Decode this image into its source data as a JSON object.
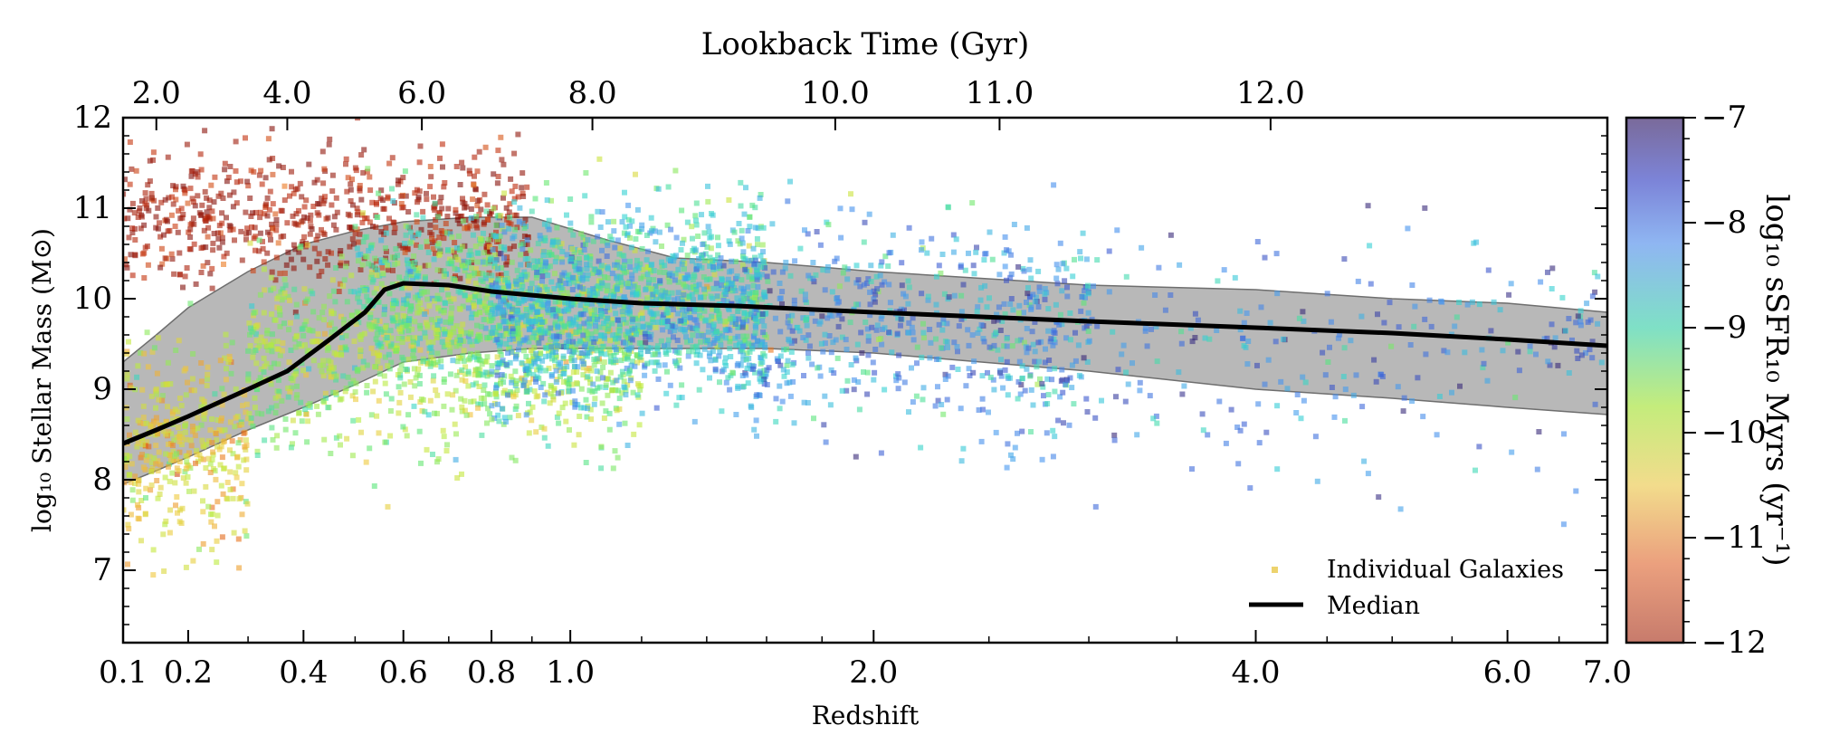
{
  "chart_data": {
    "type": "scatter",
    "top_axis": {
      "title": "Lookback Time (Gyr)",
      "tick_labels": [
        "2.0",
        "4.0",
        "6.0",
        "8.0",
        "10.0",
        "11.0",
        "12.0"
      ],
      "tick_redshifts": [
        0.15,
        0.37,
        0.64,
        1.06,
        1.85,
        2.55,
        4.1
      ]
    },
    "x_axis": {
      "title": "Redshift",
      "scale": "log(1+z)",
      "tick_labels": [
        "0.1",
        "0.2",
        "0.4",
        "0.6",
        "0.8",
        "1.0",
        "2.0",
        "4.0",
        "6.0",
        "7.0"
      ],
      "tick_values": [
        0.1,
        0.2,
        0.4,
        0.6,
        0.8,
        1.0,
        2.0,
        4.0,
        6.0,
        7.0
      ],
      "range": [
        0.1,
        7.0
      ]
    },
    "y_axis": {
      "title": "log₁₀ Stellar Mass (M⊙)",
      "tick_labels": [
        "7",
        "8",
        "9",
        "10",
        "11",
        "12"
      ],
      "tick_values": [
        7,
        8,
        9,
        10,
        11,
        12
      ],
      "range": [
        6.2,
        12.0
      ]
    },
    "colorbar": {
      "title": "log₁₀ sSFR₁₀ Myrs (yr⁻¹)",
      "tick_labels": [
        "−7",
        "−8",
        "−9",
        "−10",
        "−11",
        "−12"
      ],
      "tick_values": [
        -7,
        -8,
        -9,
        -10,
        -11,
        -12
      ],
      "range": [
        -12,
        -7
      ],
      "colormap": "turbo (reversed)"
    },
    "legend": {
      "position": "lower-right",
      "entries": [
        {
          "label": "Individual Galaxies",
          "marker": "square",
          "color": "#e8c84a"
        },
        {
          "label": "Median",
          "marker": "line",
          "color": "#000000"
        }
      ]
    },
    "median": {
      "z": [
        0.1,
        0.15,
        0.2,
        0.3,
        0.37,
        0.45,
        0.52,
        0.56,
        0.6,
        0.7,
        0.8,
        1.0,
        1.2,
        1.5,
        2.0,
        3.0,
        4.0,
        5.0,
        6.0,
        7.0
      ],
      "logM": [
        8.4,
        8.55,
        8.7,
        9.0,
        9.2,
        9.55,
        9.85,
        10.1,
        10.17,
        10.15,
        10.08,
        10.0,
        9.95,
        9.92,
        9.85,
        9.75,
        9.68,
        9.62,
        9.55,
        9.48
      ]
    },
    "band_upper": {
      "z": [
        0.1,
        0.15,
        0.2,
        0.3,
        0.4,
        0.5,
        0.6,
        0.75,
        0.9,
        1.1,
        1.3,
        1.6,
        2.0,
        3.0,
        4.0,
        5.0,
        6.0,
        7.0
      ],
      "logM": [
        9.3,
        9.6,
        9.9,
        10.3,
        10.6,
        10.75,
        10.85,
        10.9,
        10.9,
        10.65,
        10.45,
        10.4,
        10.3,
        10.15,
        10.1,
        10.0,
        9.95,
        9.85
      ]
    },
    "band_lower": {
      "z": [
        0.1,
        0.15,
        0.2,
        0.3,
        0.4,
        0.5,
        0.6,
        0.75,
        0.9,
        1.1,
        1.3,
        1.6,
        2.0,
        3.0,
        4.0,
        5.0,
        6.0,
        7.0
      ],
      "logM": [
        7.95,
        8.1,
        8.25,
        8.55,
        8.8,
        9.05,
        9.3,
        9.4,
        9.45,
        9.45,
        9.45,
        9.45,
        9.4,
        9.2,
        9.0,
        8.9,
        8.8,
        8.72
      ]
    },
    "scatter_clouds": [
      {
        "z_min": 0.1,
        "z_max": 0.3,
        "logM_mean": 8.4,
        "logM_sd": 0.55,
        "ssfr_mean": -9.9,
        "ssfr_sd": 0.35,
        "count": 380
      },
      {
        "z_min": 0.1,
        "z_max": 0.9,
        "logM_mean": 10.9,
        "logM_sd": 0.35,
        "ssfr_mean": -11.6,
        "ssfr_sd": 0.35,
        "count": 650
      },
      {
        "z_min": 0.3,
        "z_max": 1.2,
        "logM_mean": 9.4,
        "logM_sd": 0.5,
        "ssfr_mean": -9.4,
        "ssfr_sd": 0.35,
        "count": 1100
      },
      {
        "z_min": 0.5,
        "z_max": 1.6,
        "logM_mean": 10.1,
        "logM_sd": 0.45,
        "ssfr_mean": -9.0,
        "ssfr_sd": 0.4,
        "count": 950
      },
      {
        "z_min": 0.8,
        "z_max": 1.6,
        "logM_mean": 9.8,
        "logM_sd": 0.5,
        "ssfr_mean": -8.4,
        "ssfr_sd": 0.35,
        "count": 900
      },
      {
        "z_min": 1.5,
        "z_max": 3.0,
        "logM_mean": 9.75,
        "logM_sd": 0.55,
        "ssfr_mean": -8.2,
        "ssfr_sd": 0.5,
        "count": 600
      },
      {
        "z_min": 2.5,
        "z_max": 7.0,
        "logM_mean": 9.4,
        "logM_sd": 0.65,
        "ssfr_mean": -8.0,
        "ssfr_sd": 0.5,
        "count": 320
      }
    ]
  }
}
